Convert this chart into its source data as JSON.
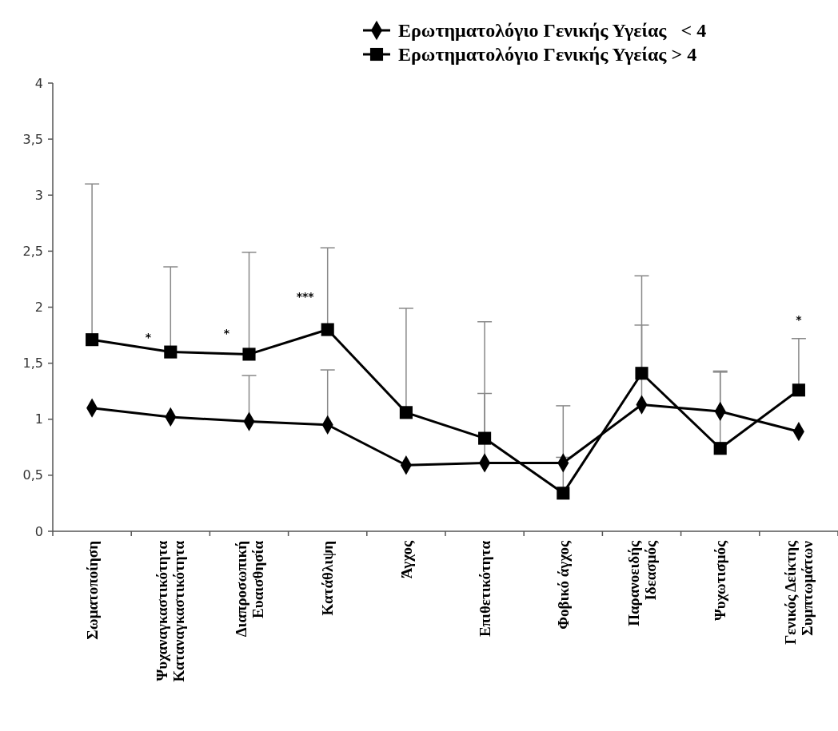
{
  "chart_data": {
    "type": "line",
    "categories": [
      "Σωματοποίηση",
      "Ψυχαναγκαστικότητα\nΚαταναγκαστικότητα",
      "Διαπροσωπική\nΕυαισθησία",
      "Κατάθλιψη",
      "Άγχος",
      "Επιθετικότητα",
      "Φοβικό άγχος",
      "Παρανοειδής\nΙδεασμός",
      "Ψυχωτισμός",
      "Γενικός Δείκτης\nΣυμπτωμάτων"
    ],
    "series": [
      {
        "name": "Ερωτηματολόγιο Γενικής Υγείας   < 4",
        "color": "#000000",
        "marker": "diamond",
        "values": [
          1.1,
          1.02,
          0.98,
          0.95,
          0.59,
          0.61,
          0.61,
          1.13,
          1.07,
          0.89
        ],
        "errors": [
          null,
          null,
          [
            0.98,
            1.39
          ],
          [
            0.95,
            1.44
          ],
          null,
          [
            0.61,
            1.23
          ],
          [
            0.61,
            0.66
          ],
          [
            1.13,
            1.84
          ],
          [
            1.07,
            1.43
          ],
          null
        ]
      },
      {
        "name": "Ερωτηματολόγιο Γενικής Υγείας > 4",
        "color": "#000000",
        "marker": "square",
        "values": [
          1.71,
          1.6,
          1.58,
          1.8,
          1.06,
          0.83,
          0.34,
          1.41,
          0.74,
          1.26
        ],
        "errors": [
          [
            1.71,
            3.1
          ],
          [
            1.6,
            2.36
          ],
          [
            1.58,
            2.49
          ],
          [
            1.8,
            2.53
          ],
          [
            1.06,
            1.99
          ],
          [
            0.83,
            1.87
          ],
          [
            0.34,
            1.12
          ],
          [
            1.41,
            2.28
          ],
          [
            0.74,
            1.42
          ],
          [
            1.26,
            1.72
          ]
        ]
      }
    ],
    "ylim": [
      0,
      4
    ],
    "yticks": [
      0,
      {
        "value": 0.5,
        "label": "0,5"
      },
      1,
      {
        "value": 1.5,
        "label": "1,5"
      },
      2,
      {
        "value": 2.5,
        "label": "2,5"
      },
      3,
      {
        "value": 3.5,
        "label": "3,5"
      },
      4
    ],
    "grid": false,
    "legend": "top right",
    "line_style": "solid",
    "annotations": [
      {
        "text": "*",
        "x": "Ψυχαναγκαστικότητα\nΚαταναγκαστικότητα",
        "y": 1.75
      },
      {
        "text": "*",
        "x": "Διαπροσωπική\nΕυαισθησία",
        "y": 1.78
      },
      {
        "text": "***",
        "x": "Κατάθλιψη",
        "y": 2.11
      },
      "*"
    ]
  }
}
